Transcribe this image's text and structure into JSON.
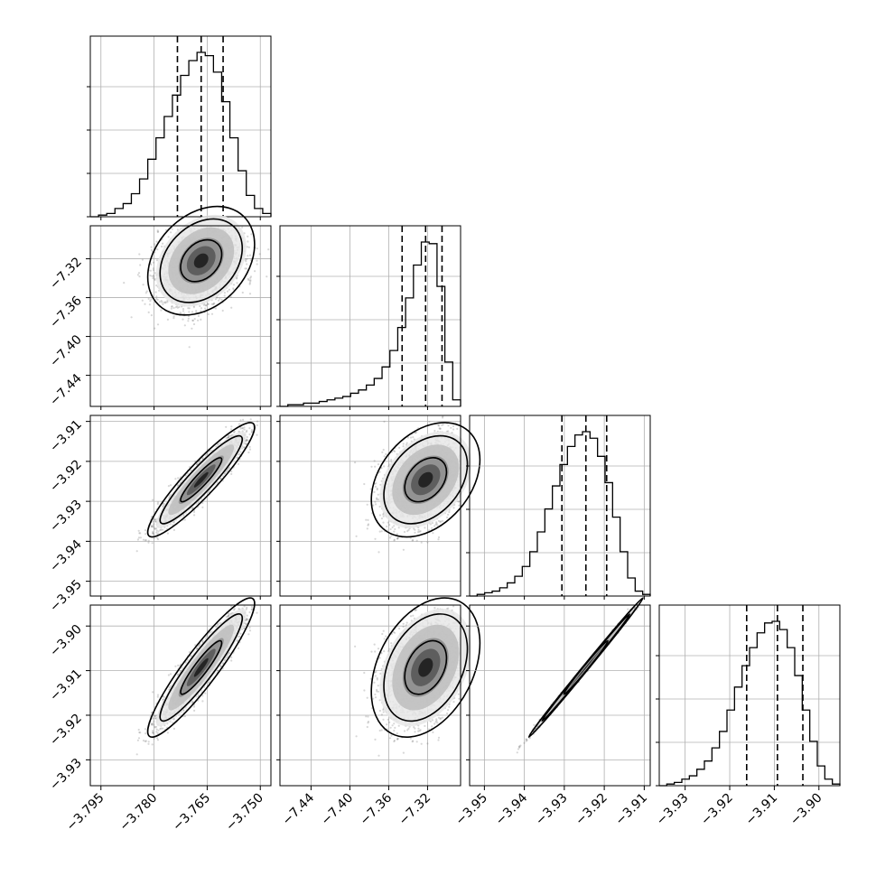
{
  "chart_data": {
    "type": "corner",
    "parameters": 4,
    "grid": true,
    "quantile_lines": "dashed",
    "axes": [
      {
        "range": [
          -3.798,
          -3.747
        ],
        "ticks": [
          -3.795,
          -3.78,
          -3.765,
          -3.75
        ],
        "tick_labels": [
          "−3.795",
          "−3.780",
          "−3.765",
          "−3.750"
        ],
        "median": -3.7667,
        "q16": -3.7734,
        "q84": -3.7605
      },
      {
        "range": [
          -7.472,
          -7.286
        ],
        "ticks": [
          -7.44,
          -7.4,
          -7.36,
          -7.32
        ],
        "tick_labels": [
          "−7.44",
          "−7.40",
          "−7.36",
          "−7.32"
        ],
        "median": -7.322,
        "q16": -7.3462,
        "q84": -7.3051
      },
      {
        "range": [
          -3.9537,
          -3.9085
        ],
        "ticks": [
          -3.95,
          -3.94,
          -3.93,
          -3.92,
          -3.91
        ],
        "tick_labels": [
          "−3.95",
          "−3.94",
          "−3.93",
          "−3.92",
          "−3.91"
        ],
        "median": -3.9246,
        "q16": -3.9306,
        "q84": -3.9194
      },
      {
        "range": [
          -3.9358,
          -3.8953
        ],
        "ticks": [
          -3.93,
          -3.92,
          -3.91,
          -3.9
        ],
        "tick_labels": [
          "−3.93",
          "−3.92",
          "−3.91",
          "−3.90"
        ],
        "median": -3.9093,
        "q16": -3.9162,
        "q84": -3.9036
      }
    ],
    "histograms": [
      [
        0.0,
        0.01,
        0.02,
        0.05,
        0.08,
        0.14,
        0.23,
        0.35,
        0.48,
        0.61,
        0.74,
        0.86,
        0.95,
        1.0,
        0.98,
        0.88,
        0.7,
        0.48,
        0.28,
        0.13,
        0.05,
        0.02
      ],
      [
        0.0,
        0.01,
        0.01,
        0.02,
        0.02,
        0.03,
        0.04,
        0.05,
        0.06,
        0.08,
        0.1,
        0.13,
        0.17,
        0.24,
        0.34,
        0.48,
        0.66,
        0.86,
        1.0,
        0.99,
        0.73,
        0.27,
        0.04
      ],
      [
        0.0,
        0.01,
        0.02,
        0.03,
        0.05,
        0.08,
        0.12,
        0.18,
        0.27,
        0.39,
        0.53,
        0.67,
        0.8,
        0.91,
        0.98,
        1.0,
        0.96,
        0.85,
        0.69,
        0.48,
        0.27,
        0.11,
        0.03,
        0.01
      ],
      [
        0.0,
        0.01,
        0.02,
        0.04,
        0.06,
        0.1,
        0.15,
        0.23,
        0.33,
        0.46,
        0.6,
        0.73,
        0.84,
        0.93,
        0.99,
        1.0,
        0.95,
        0.84,
        0.67,
        0.46,
        0.27,
        0.12,
        0.04,
        0.01
      ]
    ],
    "correlations": [
      [
        1.0,
        0.3,
        0.92,
        0.92
      ],
      [
        0.3,
        1.0,
        0.35,
        0.35
      ],
      [
        0.92,
        0.35,
        1.0,
        0.998
      ],
      [
        0.92,
        0.35,
        0.998,
        1.0
      ]
    ],
    "sigmas": [
      0.0058,
      0.0215,
      0.0055,
      0.006
    ],
    "contour_levels_sigma": [
      1.0,
      2.0,
      2.6
    ]
  }
}
